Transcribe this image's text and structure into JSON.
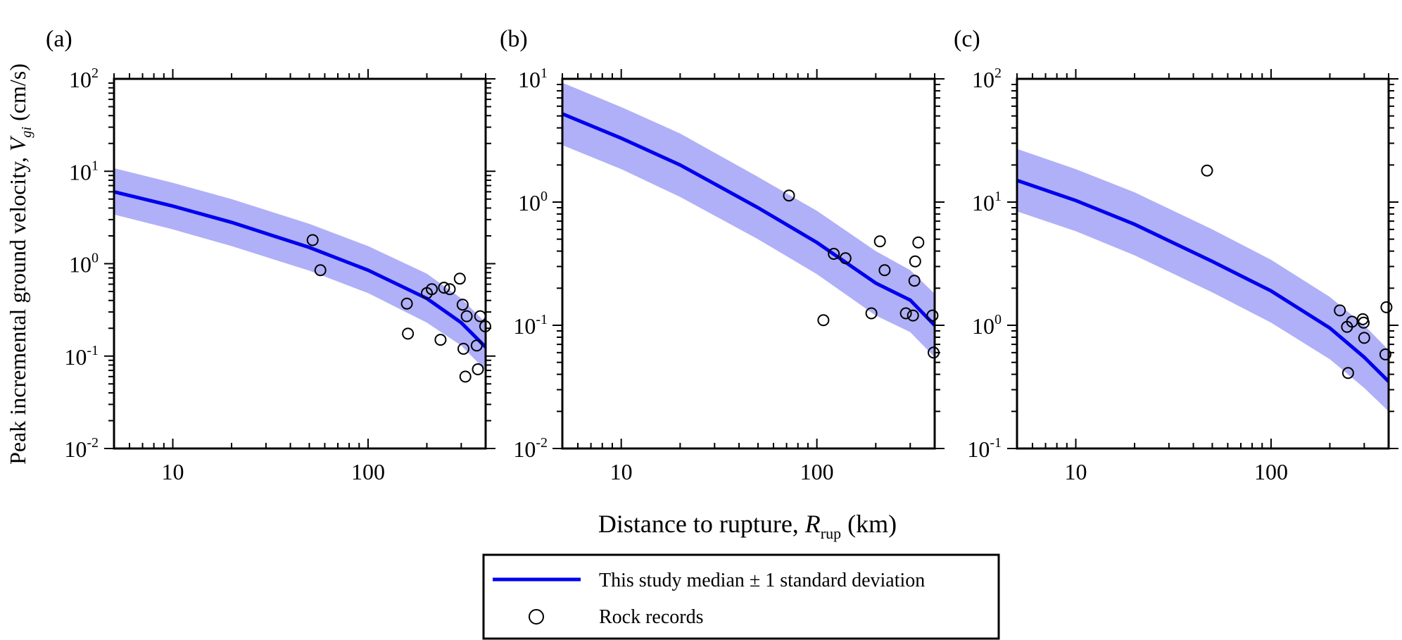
{
  "figure": {
    "ylabel_prefix": "Peak incremental ground velocity, ",
    "ylabel_symbol": "V",
    "ylabel_sub": "gi",
    "ylabel_unit": " (cm/s)",
    "xlabel_prefix": "Distance to rupture, ",
    "xlabel_symbol": "R",
    "xlabel_sub": "rup",
    "xlabel_unit": " (km)"
  },
  "legend": {
    "line_label": "This study median ± 1 standard deviation",
    "marker_label": "Rock records",
    "line_color": "#0000ee",
    "band_color": "#b0b0f8"
  },
  "chart_data": [
    {
      "type": "scatter",
      "panel_label": "(a)",
      "xscale": "log",
      "yscale": "log",
      "xlim": [
        5,
        400
      ],
      "ylim": [
        0.01,
        100
      ],
      "xticks": [
        "10",
        "100"
      ],
      "yticks": [
        {
          "base": "10",
          "exp": "2"
        },
        {
          "base": "10",
          "exp": "1"
        },
        {
          "base": "10",
          "exp": "0"
        },
        {
          "base": "10",
          "exp": "-1"
        },
        {
          "base": "10",
          "exp": "-2"
        }
      ],
      "median_curve": {
        "x": [
          5,
          10,
          20,
          50,
          100,
          200,
          300,
          400
        ],
        "y": [
          6.0,
          4.2,
          2.8,
          1.5,
          0.85,
          0.42,
          0.23,
          0.125
        ]
      },
      "band_upper": {
        "x": [
          5,
          10,
          20,
          50,
          100,
          200,
          300,
          400
        ],
        "y": [
          10.8,
          7.5,
          5.0,
          2.7,
          1.55,
          0.78,
          0.42,
          0.23
        ]
      },
      "band_lower": {
        "x": [
          5,
          10,
          20,
          50,
          100,
          200,
          300,
          400
        ],
        "y": [
          3.4,
          2.35,
          1.55,
          0.84,
          0.48,
          0.23,
          0.13,
          0.07
        ]
      },
      "points": [
        {
          "x": 52,
          "y": 1.8
        },
        {
          "x": 57,
          "y": 0.85
        },
        {
          "x": 158,
          "y": 0.37
        },
        {
          "x": 160,
          "y": 0.175
        },
        {
          "x": 200,
          "y": 0.48
        },
        {
          "x": 212,
          "y": 0.53
        },
        {
          "x": 235,
          "y": 0.15
        },
        {
          "x": 245,
          "y": 0.55
        },
        {
          "x": 262,
          "y": 0.53
        },
        {
          "x": 295,
          "y": 0.69
        },
        {
          "x": 305,
          "y": 0.36
        },
        {
          "x": 308,
          "y": 0.12
        },
        {
          "x": 315,
          "y": 0.06
        },
        {
          "x": 320,
          "y": 0.27
        },
        {
          "x": 360,
          "y": 0.13
        },
        {
          "x": 365,
          "y": 0.072
        },
        {
          "x": 375,
          "y": 0.27
        },
        {
          "x": 398,
          "y": 0.21
        }
      ]
    },
    {
      "type": "scatter",
      "panel_label": "(b)",
      "xscale": "log",
      "yscale": "log",
      "xlim": [
        5,
        400
      ],
      "ylim": [
        0.01,
        10
      ],
      "xticks": [
        "10",
        "100"
      ],
      "yticks": [
        {
          "base": "10",
          "exp": "1"
        },
        {
          "base": "10",
          "exp": "0"
        },
        {
          "base": "10",
          "exp": "-1"
        },
        {
          "base": "10",
          "exp": "-2"
        }
      ],
      "median_curve": {
        "x": [
          5,
          10,
          20,
          50,
          100,
          200,
          300,
          400
        ],
        "y": [
          5.2,
          3.3,
          2.0,
          0.9,
          0.47,
          0.22,
          0.16,
          0.1
        ]
      },
      "band_upper": {
        "x": [
          5,
          10,
          20,
          50,
          100,
          200,
          300,
          400
        ],
        "y": [
          9.3,
          5.9,
          3.6,
          1.6,
          0.85,
          0.4,
          0.28,
          0.18
        ]
      },
      "band_lower": {
        "x": [
          5,
          10,
          20,
          50,
          100,
          200,
          300,
          400
        ],
        "y": [
          2.9,
          1.85,
          1.1,
          0.5,
          0.26,
          0.12,
          0.088,
          0.055
        ]
      },
      "points": [
        {
          "x": 72,
          "y": 1.13
        },
        {
          "x": 108,
          "y": 0.11
        },
        {
          "x": 122,
          "y": 0.38
        },
        {
          "x": 140,
          "y": 0.35
        },
        {
          "x": 190,
          "y": 0.125
        },
        {
          "x": 210,
          "y": 0.48
        },
        {
          "x": 222,
          "y": 0.28
        },
        {
          "x": 285,
          "y": 0.125
        },
        {
          "x": 310,
          "y": 0.12
        },
        {
          "x": 315,
          "y": 0.23
        },
        {
          "x": 318,
          "y": 0.33
        },
        {
          "x": 330,
          "y": 0.47
        },
        {
          "x": 390,
          "y": 0.12
        },
        {
          "x": 395,
          "y": 0.06
        }
      ]
    },
    {
      "type": "scatter",
      "panel_label": "(c)",
      "xscale": "log",
      "yscale": "log",
      "xlim": [
        5,
        400
      ],
      "ylim": [
        0.1,
        100
      ],
      "xticks": [
        "10",
        "100"
      ],
      "yticks": [
        {
          "base": "10",
          "exp": "2"
        },
        {
          "base": "10",
          "exp": "1"
        },
        {
          "base": "10",
          "exp": "0"
        },
        {
          "base": "10",
          "exp": "-1"
        }
      ],
      "median_curve": {
        "x": [
          5,
          10,
          20,
          50,
          100,
          200,
          300,
          400
        ],
        "y": [
          15.0,
          10.3,
          6.6,
          3.3,
          1.9,
          0.95,
          0.55,
          0.35
        ]
      },
      "band_upper": {
        "x": [
          5,
          10,
          20,
          50,
          100,
          200,
          300,
          400
        ],
        "y": [
          27,
          18.5,
          12.0,
          6.0,
          3.4,
          1.7,
          1.0,
          0.63
        ]
      },
      "band_lower": {
        "x": [
          5,
          10,
          20,
          50,
          100,
          200,
          300,
          400
        ],
        "y": [
          8.4,
          5.8,
          3.7,
          1.85,
          1.05,
          0.53,
          0.31,
          0.2
        ]
      },
      "points": [
        {
          "x": 47,
          "y": 18.0
        },
        {
          "x": 225,
          "y": 1.32
        },
        {
          "x": 245,
          "y": 0.97
        },
        {
          "x": 248,
          "y": 0.41
        },
        {
          "x": 260,
          "y": 1.07
        },
        {
          "x": 295,
          "y": 1.12
        },
        {
          "x": 298,
          "y": 1.05
        },
        {
          "x": 300,
          "y": 0.79
        },
        {
          "x": 385,
          "y": 0.58
        },
        {
          "x": 390,
          "y": 1.4
        }
      ]
    }
  ]
}
